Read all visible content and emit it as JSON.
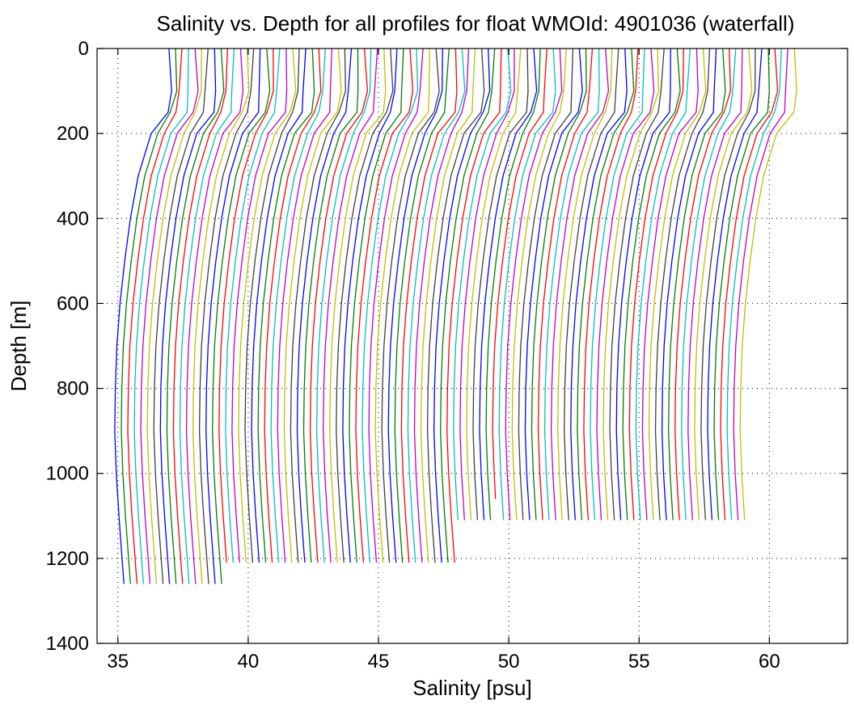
{
  "chart_data": {
    "type": "line",
    "title": "Salinity vs. Depth for all profiles for float WMOId: 4901036 (waterfall)",
    "xlabel": "Salinity [psu]",
    "ylabel": "Depth [m]",
    "xlim": [
      34.2,
      63.0
    ],
    "ylim": [
      0,
      1400
    ],
    "y_reversed": true,
    "grid": "dotted",
    "xticks": [
      35,
      40,
      45,
      50,
      55,
      60
    ],
    "yticks": [
      0,
      200,
      400,
      600,
      800,
      1000,
      1200,
      1400
    ],
    "xtick_labels": [
      "35",
      "40",
      "45",
      "50",
      "55",
      "60"
    ],
    "ytick_labels": [
      "0",
      "200",
      "400",
      "600",
      "800",
      "1000",
      "1200",
      "1400"
    ],
    "color_cycle": [
      "#0000ff",
      "#007f00",
      "#ff0000",
      "#00bfbf",
      "#bf00bf",
      "#bfbf00",
      "#3f3f3f"
    ],
    "profile_depths": [
      0,
      100,
      150,
      200,
      300,
      400,
      500,
      600,
      700,
      800,
      900,
      1000,
      1100,
      1200
    ],
    "profile_shape": [
      2.06,
      2.06,
      1.92,
      1.38,
      0.88,
      0.58,
      0.36,
      0.18,
      0.06,
      0.0,
      -0.02,
      0.04,
      0.14,
      0.26
    ],
    "series_base": [
      34.9,
      35.15,
      35.4,
      35.65,
      35.9,
      36.15,
      36.4,
      36.65,
      36.9,
      37.15,
      37.4,
      37.65,
      37.9,
      38.15,
      38.4,
      38.65,
      38.9,
      39.15,
      39.4,
      39.65,
      39.9,
      40.15,
      40.4,
      40.65,
      40.9,
      41.15,
      41.4,
      41.65,
      41.9,
      42.15,
      42.4,
      42.65,
      42.9,
      43.15,
      43.4,
      43.65,
      43.9,
      44.15,
      44.4,
      44.65,
      44.9,
      45.15,
      45.4,
      45.65,
      45.9,
      46.15,
      46.4,
      46.65,
      46.9,
      47.15,
      47.4,
      47.65,
      47.9,
      48.15,
      48.4,
      48.65,
      48.9,
      49.15,
      49.4,
      49.65,
      49.9,
      50.15,
      50.4,
      50.65,
      50.9,
      51.15,
      51.4,
      51.65,
      51.9,
      52.15,
      52.4,
      52.65,
      52.9,
      53.15,
      53.4,
      53.65,
      53.9,
      54.15,
      54.4,
      54.65,
      54.9,
      55.15,
      55.4,
      55.65,
      55.9,
      56.15,
      56.4,
      56.65,
      56.9,
      57.15,
      57.4,
      57.65,
      57.9,
      58.15,
      58.4,
      58.65,
      58.9
    ],
    "series_max_depth": [
      1260,
      1260,
      1260,
      1260,
      1260,
      1260,
      1260,
      1260,
      1260,
      1260,
      1260,
      1260,
      1260,
      1260,
      1260,
      1260,
      1210,
      1210,
      1210,
      1210,
      1210,
      1210,
      1210,
      1210,
      1210,
      1210,
      1210,
      1210,
      1210,
      1210,
      1210,
      1210,
      1210,
      1210,
      1210,
      1210,
      1210,
      1210,
      1210,
      1210,
      1210,
      1210,
      1210,
      1210,
      1210,
      1210,
      1210,
      1210,
      1210,
      1210,
      1210,
      1210,
      1110,
      1110,
      1110,
      1110,
      1110,
      1110,
      1060,
      1110,
      1110,
      1110,
      1110,
      1110,
      1110,
      1110,
      1110,
      1110,
      1110,
      1110,
      1110,
      1110,
      1110,
      1110,
      1110,
      1110,
      1110,
      1110,
      1110,
      1110,
      1110,
      1110,
      1110,
      1110,
      1110,
      1110,
      1110,
      1110,
      1110,
      1110,
      1110,
      1110,
      1110,
      1110,
      1110,
      1110,
      1110
    ]
  }
}
